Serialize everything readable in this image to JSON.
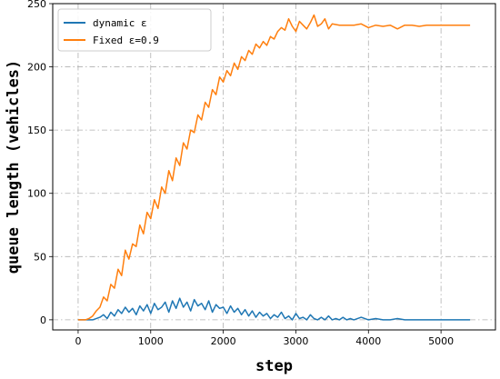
{
  "chart_data": {
    "type": "line",
    "title": "",
    "xlabel": "step",
    "ylabel": "queue length (vehicles)",
    "xlim": [
      -350,
      5750
    ],
    "ylim": [
      -8,
      250
    ],
    "xticks": [
      0,
      1000,
      2000,
      3000,
      4000,
      5000
    ],
    "yticks": [
      0,
      50,
      100,
      150,
      200,
      250
    ],
    "grid": true,
    "legend_position": "upper-left",
    "series": [
      {
        "name": "dynamic ε",
        "color": "#1f77b4",
        "x": [
          0,
          100,
          200,
          300,
          350,
          400,
          450,
          500,
          550,
          600,
          650,
          700,
          750,
          800,
          850,
          900,
          950,
          1000,
          1050,
          1100,
          1150,
          1200,
          1250,
          1300,
          1350,
          1400,
          1450,
          1500,
          1550,
          1600,
          1650,
          1700,
          1750,
          1800,
          1850,
          1900,
          1950,
          2000,
          2050,
          2100,
          2150,
          2200,
          2250,
          2300,
          2350,
          2400,
          2450,
          2500,
          2550,
          2600,
          2650,
          2700,
          2750,
          2800,
          2850,
          2900,
          2950,
          3000,
          3050,
          3100,
          3150,
          3200,
          3250,
          3300,
          3350,
          3400,
          3450,
          3500,
          3550,
          3600,
          3650,
          3700,
          3750,
          3800,
          3900,
          4000,
          4100,
          4200,
          4300,
          4400,
          4500,
          4600,
          4700,
          4800,
          4900,
          5000,
          5100,
          5200,
          5300,
          5400
        ],
        "y": [
          0,
          0,
          0,
          2,
          4,
          1,
          6,
          3,
          8,
          5,
          10,
          6,
          9,
          4,
          11,
          7,
          12,
          5,
          13,
          8,
          10,
          14,
          6,
          15,
          9,
          17,
          10,
          14,
          7,
          16,
          11,
          13,
          8,
          15,
          6,
          12,
          9,
          10,
          5,
          11,
          6,
          9,
          4,
          8,
          3,
          7,
          2,
          6,
          3,
          5,
          1,
          4,
          2,
          6,
          1,
          3,
          0,
          5,
          1,
          2,
          0,
          4,
          1,
          0,
          2,
          0,
          3,
          0,
          1,
          0,
          2,
          0,
          1,
          0,
          2,
          0,
          1,
          0,
          0,
          1,
          0,
          0,
          0,
          0,
          0,
          0,
          0,
          0,
          0,
          0
        ]
      },
      {
        "name": "Fixed ε=0.9",
        "color": "#ff7f0e",
        "x": [
          0,
          50,
          100,
          150,
          200,
          250,
          300,
          350,
          400,
          450,
          500,
          550,
          600,
          650,
          700,
          750,
          800,
          850,
          900,
          950,
          1000,
          1050,
          1100,
          1150,
          1200,
          1250,
          1300,
          1350,
          1400,
          1450,
          1500,
          1550,
          1600,
          1650,
          1700,
          1750,
          1800,
          1850,
          1900,
          1950,
          2000,
          2050,
          2100,
          2150,
          2200,
          2250,
          2300,
          2350,
          2400,
          2450,
          2500,
          2550,
          2600,
          2650,
          2700,
          2750,
          2800,
          2850,
          2900,
          2950,
          3000,
          3050,
          3100,
          3150,
          3200,
          3250,
          3300,
          3350,
          3400,
          3450,
          3500,
          3600,
          3700,
          3800,
          3900,
          4000,
          4100,
          4200,
          4300,
          4400,
          4500,
          4600,
          4700,
          4800,
          4900,
          5000,
          5100,
          5200,
          5300,
          5400
        ],
        "y": [
          0,
          0,
          0,
          1,
          3,
          7,
          10,
          18,
          15,
          28,
          25,
          40,
          35,
          55,
          48,
          60,
          58,
          75,
          68,
          85,
          80,
          95,
          88,
          105,
          100,
          118,
          110,
          128,
          122,
          140,
          135,
          150,
          148,
          162,
          158,
          172,
          168,
          182,
          178,
          192,
          188,
          197,
          193,
          203,
          198,
          208,
          205,
          213,
          210,
          218,
          215,
          220,
          217,
          224,
          222,
          228,
          231,
          229,
          238,
          232,
          228,
          236,
          233,
          230,
          235,
          241,
          232,
          234,
          238,
          230,
          234,
          233,
          233,
          233,
          234,
          231,
          233,
          232,
          233,
          230,
          233,
          233,
          232,
          233,
          233,
          233,
          233,
          233,
          233,
          233
        ]
      }
    ]
  }
}
